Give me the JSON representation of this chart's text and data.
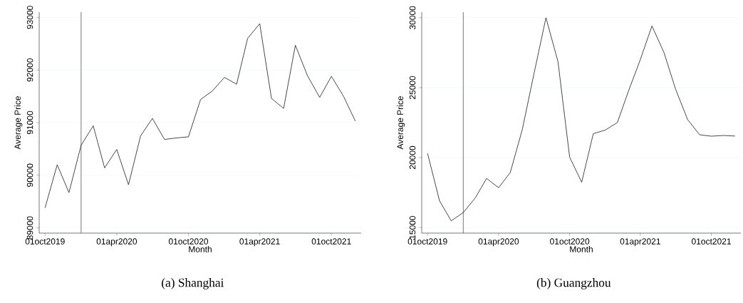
{
  "chart_data": [
    {
      "type": "line",
      "xlabel": "Month",
      "ylabel": "Average Price",
      "color": "#1a1a1a",
      "grid": "y",
      "x": [
        "2019-10",
        "2019-11",
        "2019-12",
        "2020-01",
        "2020-02",
        "2020-03",
        "2020-04",
        "2020-05",
        "2020-06",
        "2020-07",
        "2020-08",
        "2020-09",
        "2020-10",
        "2020-11",
        "2020-12",
        "2021-01",
        "2021-02",
        "2021-03",
        "2021-04",
        "2021-05",
        "2021-06",
        "2021-07",
        "2021-08",
        "2021-09",
        "2021-10",
        "2021-11",
        "2021-12"
      ],
      "values": [
        89380,
        90200,
        89670,
        90570,
        90940,
        90140,
        90490,
        89820,
        90750,
        91080,
        90680,
        90710,
        90730,
        91440,
        91600,
        91860,
        91730,
        92600,
        92880,
        91460,
        91270,
        92470,
        91890,
        91480,
        91880,
        91500,
        91030
      ],
      "xlim": [
        "2019-09-16",
        "2021-12-16"
      ],
      "ylim": [
        88900,
        93100
      ],
      "xticks": [
        {
          "value": "2019-10-01",
          "label": "01oct2019"
        },
        {
          "value": "2020-04-01",
          "label": "01apr2020"
        },
        {
          "value": "2020-10-01",
          "label": "01oct2020"
        },
        {
          "value": "2021-04-01",
          "label": "01apr2021"
        },
        {
          "value": "2021-10-01",
          "label": "01oct2021"
        }
      ],
      "yticks": [
        89000,
        90000,
        91000,
        92000,
        93000
      ],
      "ref_lines": [
        {
          "axis": "x",
          "value": "2020-01-01",
          "color": "#555555"
        }
      ],
      "annotations": [
        "(a) Shanghai"
      ]
    },
    {
      "type": "line",
      "xlabel": "Month",
      "ylabel": "Average Price",
      "color": "#1a1a1a",
      "grid": "y",
      "x": [
        "2019-10",
        "2019-11",
        "2019-12",
        "2020-01",
        "2020-02",
        "2020-03",
        "2020-04",
        "2020-05",
        "2020-06",
        "2020-07",
        "2020-08",
        "2020-09",
        "2020-10",
        "2020-11",
        "2020-12",
        "2021-01",
        "2021-02",
        "2021-03",
        "2021-04",
        "2021-05",
        "2021-06",
        "2021-07",
        "2021-08",
        "2021-09",
        "2021-10",
        "2021-11",
        "2021-12"
      ],
      "values": [
        20300,
        16900,
        15480,
        16070,
        17120,
        18510,
        17850,
        18930,
        22000,
        25980,
        30000,
        26860,
        20030,
        18240,
        21710,
        21970,
        22510,
        24710,
        27000,
        29410,
        27510,
        24880,
        22710,
        21630,
        21530,
        21580,
        21540
      ],
      "xlim": [
        "2019-09-16",
        "2021-12-16"
      ],
      "ylim": [
        14600,
        30400
      ],
      "xticks": [
        {
          "value": "2019-10-01",
          "label": "01oct2019"
        },
        {
          "value": "2020-04-01",
          "label": "01apr2020"
        },
        {
          "value": "2020-10-01",
          "label": "01oct2020"
        },
        {
          "value": "2021-04-01",
          "label": "01apr2021"
        },
        {
          "value": "2021-10-01",
          "label": "01oct2021"
        }
      ],
      "yticks": [
        15000,
        20000,
        25000,
        30000
      ],
      "ref_lines": [
        {
          "axis": "x",
          "value": "2020-01-01",
          "color": "#555555"
        }
      ],
      "annotations": [
        "(b) Guangzhou"
      ]
    }
  ]
}
